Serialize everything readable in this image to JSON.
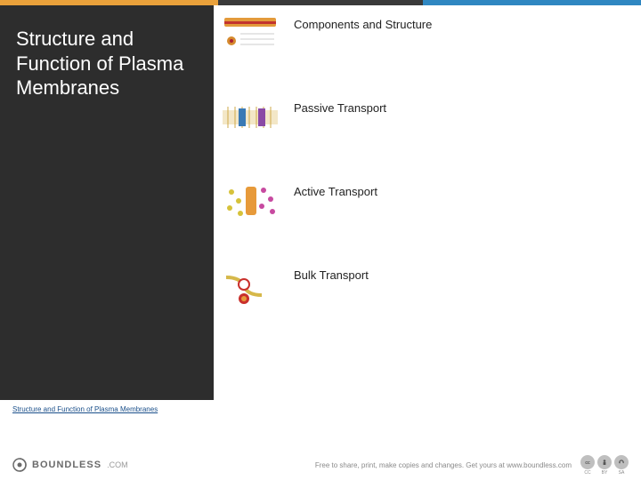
{
  "accent": {
    "colors": [
      "#e9a13b",
      "#3a3a3a",
      "#2f87c1"
    ],
    "widths_pct": [
      34,
      32,
      34
    ]
  },
  "sidebar": {
    "background": "#2d2d2d",
    "title": "Structure and Function of Plasma Membranes",
    "title_color": "#ffffff",
    "title_fontsize": 22
  },
  "topics": [
    {
      "label": "Components and Structure",
      "thumb": "membrane-diagram"
    },
    {
      "label": "Passive Transport",
      "thumb": "diffusion-diagram"
    },
    {
      "label": "Active Transport",
      "thumb": "pump-diagram"
    },
    {
      "label": "Bulk Transport",
      "thumb": "vesicle-diagram"
    }
  ],
  "source": {
    "text": "Structure and Function of Plasma Membranes"
  },
  "footer": {
    "brand_name": "BOUNDLESS",
    "brand_suffix": ".COM",
    "tagline": "Free to share, print, make copies and changes. Get yours at www.boundless.com",
    "cc": [
      "CC",
      "BY",
      "SA"
    ]
  },
  "colors": {
    "page_bg": "#ffffff",
    "text": "#222222",
    "link": "#1a4f8a",
    "footer_text": "#8a8a8a",
    "brand_gray": "#6a6a6a",
    "badge_bg": "#bfbfbf"
  }
}
